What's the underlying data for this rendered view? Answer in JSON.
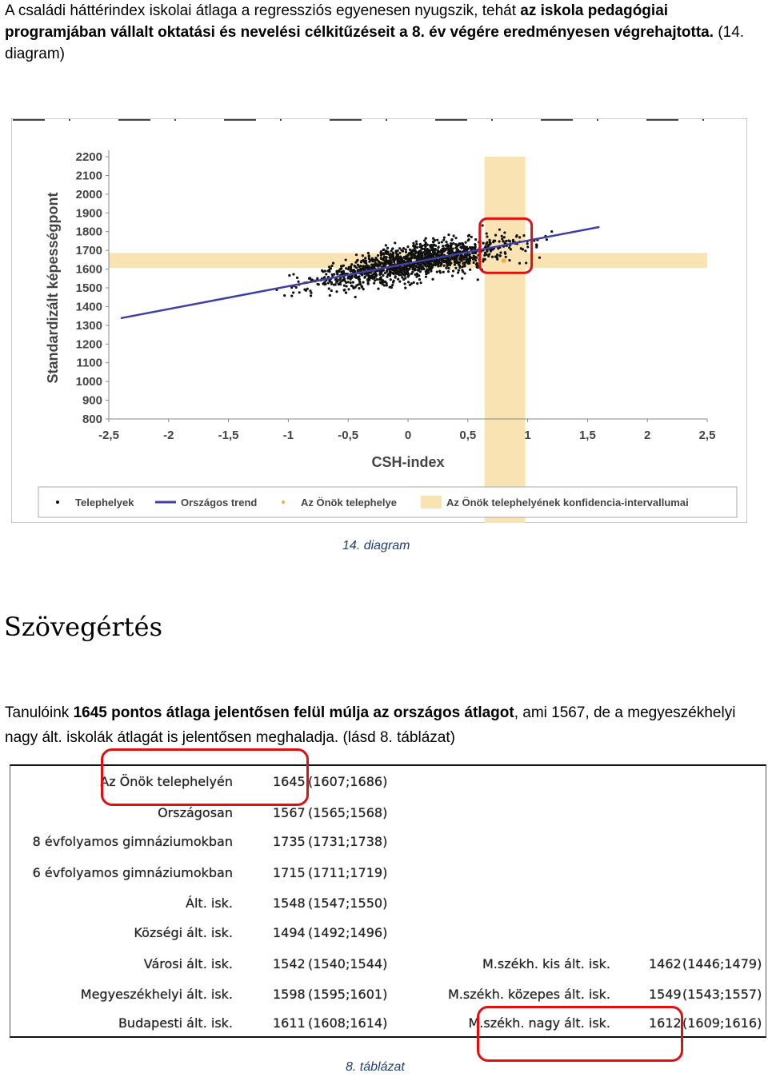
{
  "intro": {
    "t1": "A családi háttérindex iskolai átlaga a regressziós egyenesen nyugszik, tehát ",
    "t2_bold": "az iskola pedagógiai programjában vállalt oktatási és nevelési célkitűzéseit a 8. év végére eredményesen végrehajtotta.",
    "t3": " (14. diagram)"
  },
  "figure": {
    "caption": "14. diagram",
    "colors": {
      "band": "#f9e3b2",
      "trend": "#3f3fa6",
      "points": "#111111",
      "school": "#f0b040",
      "highlight": "#e01010"
    }
  },
  "chart_data": {
    "type": "scatter",
    "title": "",
    "xlabel": "CSH-index",
    "ylabel": "Standardizált képességpont",
    "xlim": [
      -2.5,
      2.5
    ],
    "ylim": [
      800,
      2200
    ],
    "xticks": [
      "-2,5",
      "-2",
      "-1,5",
      "-1",
      "-0,5",
      "0",
      "0,5",
      "1",
      "1,5",
      "2",
      "2,5"
    ],
    "yticks": [
      "800",
      "900",
      "1000",
      "1100",
      "1200",
      "1300",
      "1400",
      "1500",
      "1600",
      "1700",
      "1800",
      "1900",
      "2000",
      "2100",
      "2200"
    ],
    "trend": {
      "x": [
        -2.4,
        1.6
      ],
      "y": [
        1338,
        1825
      ]
    },
    "confidence_band": {
      "x": [
        0.64,
        0.98
      ],
      "y": [
        1607,
        1686
      ]
    },
    "school_point": {
      "x": 0.8,
      "y": 1645
    },
    "series": [
      {
        "name": "Telephelyek",
        "note_shape": "cloud"
      },
      {
        "name": "Országos trend"
      },
      {
        "name": "Az Önök telephelye"
      },
      {
        "name": "Az Önök telephelyének konfidencia-intervallumai"
      }
    ]
  },
  "section": {
    "title": "Szövegértés"
  },
  "paragraph": {
    "t1": "Tanulóink ",
    "t2_bold": "1645 pontos átlaga jelentősen felül múlja az országos átlagot",
    "t3": ", ami 1567, de a megyeszékhelyi nagy ált. iskolák átlagát is jelentősen meghaladja. (lásd 8. táblázat)"
  },
  "table": {
    "caption": "8. táblázat",
    "left": [
      {
        "label": "Az Önök telephelyén",
        "value": "1645",
        "ci": "(1607;1686)"
      },
      {
        "label": "Országosan",
        "value": "1567",
        "ci": "(1565;1568)"
      },
      {
        "label": "8 évfolyamos gimnáziumokban",
        "value": "1735",
        "ci": "(1731;1738)"
      },
      {
        "label": "6 évfolyamos gimnáziumokban",
        "value": "1715",
        "ci": "(1711;1719)"
      },
      {
        "label": "Ált. isk.",
        "value": "1548",
        "ci": "(1547;1550)"
      },
      {
        "label": "Községi ált. isk.",
        "value": "1494",
        "ci": "(1492;1496)"
      },
      {
        "label": "Városi ált. isk.",
        "value": "1542",
        "ci": "(1540;1544)"
      },
      {
        "label": "Megyeszékhelyi ált. isk.",
        "value": "1598",
        "ci": "(1595;1601)"
      },
      {
        "label": "Budapesti ált. isk.",
        "value": "1611",
        "ci": "(1608;1614)"
      }
    ],
    "right": [
      {
        "label": "M.székh. kis ált. isk.",
        "value": "1462",
        "ci": "(1446;1479)"
      },
      {
        "label": "M.székh. közepes ált. isk.",
        "value": "1549",
        "ci": "(1543;1557)"
      },
      {
        "label": "M.székh. nagy ált. isk.",
        "value": "1612",
        "ci": "(1609;1616)"
      }
    ]
  }
}
